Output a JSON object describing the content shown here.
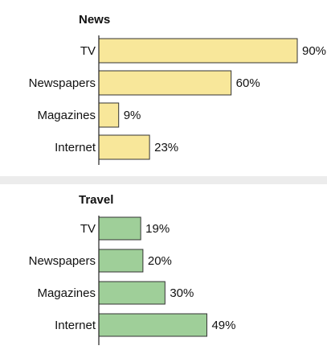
{
  "chart_data": [
    {
      "type": "bar",
      "orientation": "horizontal",
      "title": "News",
      "categories": [
        "TV",
        "Newspapers",
        "Magazines",
        "Internet"
      ],
      "values": [
        90,
        60,
        9,
        23
      ],
      "value_labels": [
        "90%",
        "60%",
        "9%",
        "23%"
      ],
      "bar_color": "#f8e79a",
      "bar_stroke": "#333333",
      "xlim": [
        0,
        100
      ],
      "grid": false
    },
    {
      "type": "bar",
      "orientation": "horizontal",
      "title": "Travel",
      "categories": [
        "TV",
        "Newspapers",
        "Magazines",
        "Internet"
      ],
      "values": [
        19,
        20,
        30,
        49
      ],
      "value_labels": [
        "19%",
        "20%",
        "30%",
        "49%"
      ],
      "bar_color": "#9fcf99",
      "bar_stroke": "#333333",
      "xlim": [
        0,
        100
      ],
      "grid": false
    }
  ]
}
